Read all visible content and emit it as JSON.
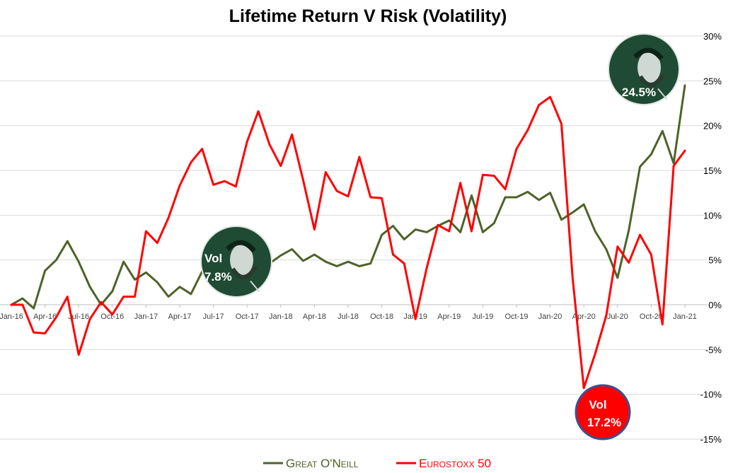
{
  "chart_data": {
    "type": "line",
    "title": "Lifetime Return V Risk (Volatility)",
    "x": [
      "2016-01",
      "2016-02",
      "2016-03",
      "2016-04",
      "2016-05",
      "2016-06",
      "2016-07",
      "2016-08",
      "2016-09",
      "2016-10",
      "2016-11",
      "2016-12",
      "2017-01",
      "2017-02",
      "2017-03",
      "2017-04",
      "2017-05",
      "2017-06",
      "2017-07",
      "2017-08",
      "2017-09",
      "2017-10",
      "2017-11",
      "2017-12",
      "2018-01",
      "2018-02",
      "2018-03",
      "2018-04",
      "2018-05",
      "2018-06",
      "2018-07",
      "2018-08",
      "2018-09",
      "2018-10",
      "2018-11",
      "2018-12",
      "2019-01",
      "2019-02",
      "2019-03",
      "2019-04",
      "2019-05",
      "2019-06",
      "2019-07",
      "2019-08",
      "2019-09",
      "2019-10",
      "2019-11",
      "2019-12",
      "2020-01",
      "2020-02",
      "2020-03",
      "2020-04",
      "2020-05",
      "2020-06",
      "2020-07",
      "2020-08",
      "2020-09",
      "2020-10",
      "2020-11",
      "2020-12",
      "2021-01"
    ],
    "x_tick_labels": [
      "Jan-16",
      "Apr-16",
      "Jul-16",
      "Oct-16",
      "Jan-17",
      "Apr-17",
      "Jul-17",
      "Oct-17",
      "Jan-18",
      "Apr-18",
      "Jul-18",
      "Oct-18",
      "Jan-19",
      "Apr-19",
      "Jul-19",
      "Oct-19",
      "Jan-20",
      "Apr-20",
      "Jul-20",
      "Oct-20",
      "Jan-21"
    ],
    "y_tick_labels": [
      "30%",
      "25%",
      "20%",
      "15%",
      "10%",
      "5%",
      "0%",
      "-5%",
      "-10%",
      "-15%"
    ],
    "ylim": [
      -15,
      30
    ],
    "y_unit": "%",
    "grid": "horizontal",
    "legend_position": "bottom",
    "series": [
      {
        "name": "Great O'Neill",
        "color": "#4f6228",
        "values": [
          0.0,
          0.7,
          -0.4,
          3.8,
          5.0,
          7.1,
          4.8,
          2.0,
          0.0,
          1.5,
          4.8,
          2.8,
          3.6,
          2.5,
          0.9,
          2.0,
          1.2,
          3.7,
          3.0,
          4.0,
          5.3,
          5.6,
          3.5,
          4.6,
          5.5,
          6.2,
          4.9,
          5.6,
          4.8,
          4.3,
          4.8,
          4.3,
          4.6,
          7.8,
          8.8,
          7.3,
          8.4,
          8.1,
          8.8,
          9.4,
          8.1,
          12.2,
          8.1,
          9.1,
          12.0,
          12.0,
          12.6,
          11.7,
          12.5,
          9.5,
          10.3,
          11.2,
          8.2,
          6.2,
          3.0,
          8.3,
          15.4,
          16.8,
          19.4,
          15.8,
          24.5
        ]
      },
      {
        "name": "Eurostoxx 50",
        "color": "#ff0000",
        "values": [
          0.0,
          0.0,
          -3.1,
          -3.2,
          -1.4,
          0.9,
          -5.6,
          -1.6,
          0.3,
          -1.1,
          0.9,
          0.9,
          8.2,
          6.9,
          9.7,
          13.3,
          15.9,
          17.4,
          13.4,
          13.8,
          13.2,
          18.2,
          21.6,
          17.9,
          15.5,
          19.0,
          13.9,
          8.4,
          14.8,
          12.7,
          12.1,
          16.5,
          12.0,
          11.9,
          5.6,
          4.6,
          -1.6,
          4.1,
          8.9,
          8.2,
          13.6,
          8.2,
          14.5,
          14.4,
          12.9,
          17.4,
          19.5,
          22.3,
          23.2,
          20.2,
          3.0,
          -9.3,
          -5.5,
          -1.2,
          6.5,
          4.7,
          7.8,
          5.6,
          -2.2,
          15.5,
          17.2
        ]
      }
    ],
    "annotations": [
      {
        "label": "Vol",
        "value": "7.8%"
      },
      {
        "label": "Vol",
        "value": "17.2%"
      },
      {
        "label": "",
        "value": "24.5%"
      }
    ]
  }
}
